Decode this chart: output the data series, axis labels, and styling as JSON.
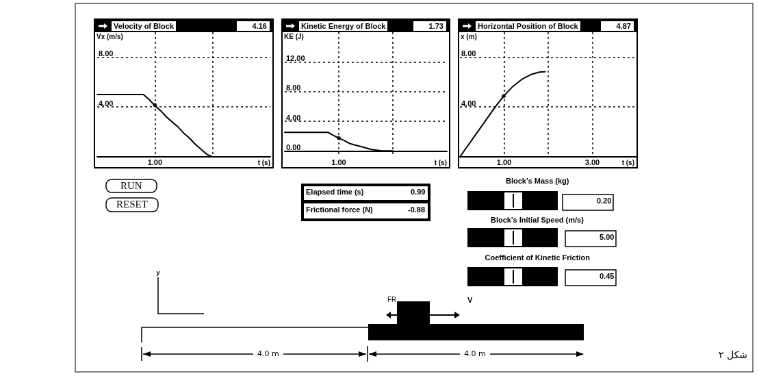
{
  "chart_data": [
    {
      "type": "line",
      "title": "Velocity of Block",
      "subtitle": "4.16",
      "xlabel": "t (s)",
      "ylabel": "Vx (m/s)",
      "categories": [
        null,
        null,
        null,
        null,
        null,
        null,
        null,
        null,
        null,
        null,
        "1.00",
        null,
        null,
        null,
        null,
        null,
        null,
        null,
        null,
        null,
        null,
        null,
        null,
        null,
        null,
        null,
        null,
        null,
        null,
        null,
        null
      ],
      "ylim": [
        0,
        10
      ],
      "yticks": [
        {
          "value": 0,
          "label": null
        },
        {
          "value": 4,
          "label": "4.00"
        },
        {
          "value": 8,
          "label": "8.00"
        }
      ],
      "grid": true,
      "marker": "none",
      "series": [
        {
          "color": "#000000",
          "values": [
            5,
            5,
            5,
            5,
            5,
            5,
            5,
            5,
            5,
            4.6,
            4.1,
            3.7,
            3.2,
            2.8,
            2.4,
            1.9,
            1.5,
            1.0,
            0.6,
            0.2,
            0,
            null,
            null,
            null,
            null,
            null,
            null,
            null,
            null,
            null,
            null
          ]
        },
        {
          "type": "scatter",
          "marker": "circle",
          "color": "#000000",
          "x": [
            "1.00"
          ],
          "values": [
            4.16
          ]
        }
      ]
    },
    {
      "type": "line",
      "title": "Kinetic Energy of Block",
      "subtitle": "1.73",
      "xlabel": "t (s)",
      "ylabel": "KE (J)",
      "categories": [
        null,
        null,
        null,
        null,
        null,
        null,
        null,
        null,
        null,
        null,
        "1.00",
        null,
        null,
        null,
        null,
        null,
        null,
        null,
        null,
        null,
        null,
        null,
        null,
        null,
        null,
        null,
        null,
        null,
        null,
        null,
        null
      ],
      "ylim": [
        -0.8,
        16
      ],
      "yticks": [
        {
          "value": 0,
          "label": "0.00"
        },
        {
          "value": 4,
          "label": "4.00"
        },
        {
          "value": 8,
          "label": "8.00"
        },
        {
          "value": 12,
          "label": "12.00"
        }
      ],
      "grid": true,
      "marker": "none",
      "series": [
        {
          "color": "#000000",
          "values": [
            2.5,
            2.5,
            2.5,
            2.5,
            2.5,
            2.5,
            2.5,
            2.5,
            2.5,
            2.1,
            1.7,
            1.4,
            1.0,
            0.8,
            0.6,
            0.4,
            0.2,
            0.1,
            0,
            0,
            0,
            null,
            null,
            null,
            null,
            null,
            null,
            null,
            null,
            null,
            null
          ]
        },
        {
          "type": "scatter",
          "marker": "circle",
          "color": "#000000",
          "x": [
            "1.00"
          ],
          "values": [
            1.73
          ]
        }
      ]
    },
    {
      "type": "line",
      "title": "Horizontal Position of Block",
      "subtitle": "4.87",
      "xlabel": "t (s)",
      "ylabel": "x (m)",
      "xlim": [
        0,
        4
      ],
      "ylim": [
        0,
        10
      ],
      "xticks": [
        {
          "value": 1,
          "label": "1.00"
        },
        {
          "value": 2,
          "label": null
        },
        {
          "value": 3,
          "label": "3.00"
        }
      ],
      "yticks": [
        {
          "value": 0,
          "label": null
        },
        {
          "value": 4,
          "label": "4.00"
        },
        {
          "value": 8,
          "label": "8.00"
        }
      ],
      "grid": true,
      "marker": "none",
      "series": [
        {
          "color": "#000000",
          "x": [
            0,
            0.4,
            0.8,
            0.99,
            1.2,
            1.4,
            1.6,
            1.8,
            1.93
          ],
          "values": [
            0,
            2,
            4,
            4.87,
            5.65,
            6.21,
            6.59,
            6.8,
            6.83
          ]
        },
        {
          "type": "scatter",
          "marker": "circle",
          "color": "#000000",
          "x": [
            0.99
          ],
          "values": [
            4.87
          ]
        }
      ]
    },
    {
      "type": "other",
      "annotations": [
        "RUN",
        "RESET",
        "Elapsed time (s)",
        "0.99",
        "Frictional force (N)",
        "-0.88",
        "Block's Mass (kg)",
        "0.20",
        "Block's Initial Speed (m/s)",
        "5.00",
        "Coefficient of Kinetic Friction",
        "0.45",
        "y",
        "FR",
        "V",
        "4.0 m",
        "4.0 m",
        "شکل ۲"
      ]
    }
  ]
}
